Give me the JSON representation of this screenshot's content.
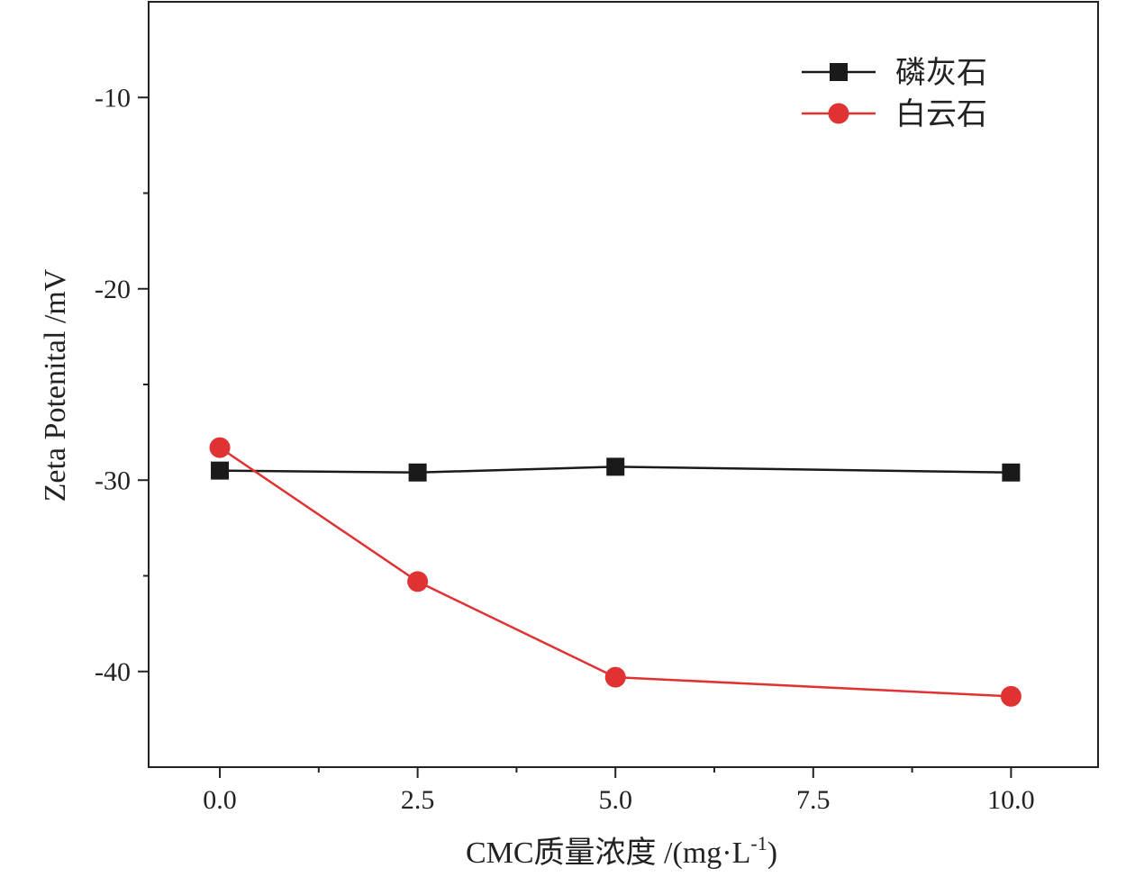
{
  "chart_data": {
    "type": "line",
    "xlabel": "CMC质量浓度 /(mg·L-1)",
    "xlabel_main": "CMC质量浓度  /(mg·L",
    "xlabel_sup": "-1",
    "xlabel_close": ")",
    "ylabel": "Zeta Potenital /mV",
    "xlim": [
      -0.9,
      11.1
    ],
    "ylim": [
      -45,
      -5
    ],
    "x_ticks": [
      "0.0",
      "2.5",
      "5.0",
      "7.5",
      "10.0"
    ],
    "y_ticks": [
      "-10",
      "-20",
      "-30",
      "-40"
    ],
    "grid": false,
    "legend_position": "top-right",
    "series": [
      {
        "name": "磷灰石",
        "color": "#1a1a1a",
        "marker": "square",
        "x": [
          0,
          2.5,
          5,
          10
        ],
        "y": [
          -29.5,
          -29.6,
          -29.3,
          -29.6
        ]
      },
      {
        "name": "白云石",
        "color": "#e03232",
        "marker": "circle",
        "x": [
          0,
          2.5,
          5,
          10
        ],
        "y": [
          -28.3,
          -35.3,
          -40.3,
          -41.3
        ]
      }
    ]
  }
}
